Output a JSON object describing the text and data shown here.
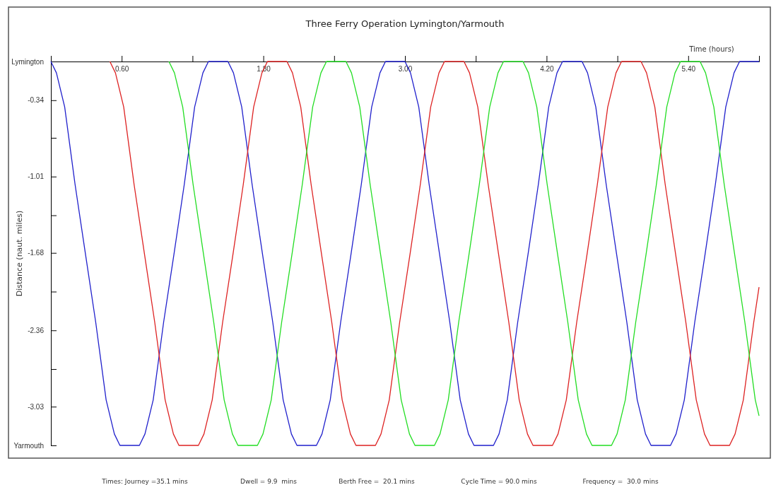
{
  "chart_data": {
    "type": "line",
    "title": "Three Ferry Operation Lymington/Yarmouth",
    "xlabel": "Time (hours)",
    "ylabel": "Distance (naut. miles)",
    "xlim": [
      0,
      6
    ],
    "xticks": [
      {
        "value": 0,
        "label": null
      },
      {
        "value": 0.6,
        "label": "0.60"
      },
      {
        "value": 1.2,
        "label": null
      },
      {
        "value": 1.8,
        "label": "1.80"
      },
      {
        "value": 2.4,
        "label": null
      },
      {
        "value": 3,
        "label": "3.00"
      },
      {
        "value": 3.6,
        "label": null
      },
      {
        "value": 4.2,
        "label": "4.20"
      },
      {
        "value": 4.8,
        "label": null
      },
      {
        "value": 5.4,
        "label": "5.40"
      },
      {
        "value": 6,
        "label": null
      }
    ],
    "ylim": [
      -3.37,
      0
    ],
    "yticks": [
      {
        "value": 0,
        "label": "Lymington"
      },
      -0.34,
      {
        "value": -0.67,
        "label": null
      },
      -1.01,
      {
        "value": -1.35,
        "label": null
      },
      -1.68,
      {
        "value": -2.02,
        "label": null
      },
      -2.36,
      {
        "value": -2.7,
        "label": null
      },
      -3.03,
      {
        "value": -3.37,
        "label": "Yarmouth"
      }
    ],
    "series": [
      {
        "color": "#2020cc",
        "x": [
          0,
          0.047,
          0.117,
          0.205,
          0.293,
          0.38,
          0.468,
          0.538,
          0.585,
          0.75,
          0.797,
          0.867,
          0.955,
          1.043,
          1.13,
          1.218,
          1.288,
          1.335,
          1.5,
          1.547,
          1.617,
          1.705,
          1.793,
          1.88,
          1.968,
          2.038,
          2.085,
          2.25,
          2.297,
          2.367,
          2.455,
          2.543,
          2.63,
          2.718,
          2.788,
          2.835,
          3,
          3.047,
          3.117,
          3.205,
          3.293,
          3.38,
          3.468,
          3.538,
          3.585,
          3.75,
          3.797,
          3.867,
          3.955,
          4.043,
          4.13,
          4.218,
          4.288,
          4.335,
          4.5,
          4.547,
          4.617,
          4.705,
          4.793,
          4.88,
          4.968,
          5.038,
          5.085,
          5.25,
          5.297,
          5.367,
          5.455,
          5.543,
          5.63,
          5.718,
          5.788,
          5.835,
          6
        ],
        "values": [
          0,
          -0.1,
          -0.4,
          -1.08,
          -1.69,
          -2.29,
          -2.97,
          -3.27,
          -3.37,
          -3.37,
          -3.27,
          -2.97,
          -2.29,
          -1.69,
          -1.08,
          -0.4,
          -0.1,
          0,
          0,
          -0.1,
          -0.4,
          -1.08,
          -1.69,
          -2.29,
          -2.97,
          -3.27,
          -3.37,
          -3.37,
          -3.27,
          -2.97,
          -2.29,
          -1.69,
          -1.08,
          -0.4,
          -0.1,
          0,
          0,
          -0.1,
          -0.4,
          -1.08,
          -1.69,
          -2.29,
          -2.97,
          -3.27,
          -3.37,
          -3.37,
          -3.27,
          -2.97,
          -2.29,
          -1.69,
          -1.08,
          -0.4,
          -0.1,
          0,
          0,
          -0.1,
          -0.4,
          -1.08,
          -1.69,
          -2.29,
          -2.97,
          -3.27,
          -3.37,
          -3.37,
          -3.27,
          -2.97,
          -2.29,
          -1.69,
          -1.08,
          -0.4,
          -0.1,
          0,
          0
        ]
      },
      {
        "color": "#dd2222",
        "x": [
          0.5,
          0.547,
          0.617,
          0.705,
          0.793,
          0.88,
          0.968,
          1.038,
          1.085,
          1.25,
          1.297,
          1.367,
          1.455,
          1.543,
          1.63,
          1.718,
          1.788,
          1.835,
          2,
          2.047,
          2.117,
          2.205,
          2.293,
          2.38,
          2.468,
          2.538,
          2.585,
          2.75,
          2.797,
          2.867,
          2.955,
          3.043,
          3.13,
          3.218,
          3.288,
          3.335,
          3.5,
          3.547,
          3.617,
          3.705,
          3.793,
          3.88,
          3.968,
          4.038,
          4.085,
          4.25,
          4.297,
          4.367,
          4.455,
          4.543,
          4.63,
          4.718,
          4.788,
          4.835,
          5,
          5.047,
          5.117,
          5.205,
          5.293,
          5.38,
          5.468,
          5.538,
          5.585,
          5.75,
          5.797,
          5.867,
          5.955,
          6
        ],
        "values": [
          0,
          -0.1,
          -0.4,
          -1.08,
          -1.69,
          -2.29,
          -2.97,
          -3.27,
          -3.37,
          -3.37,
          -3.27,
          -2.97,
          -2.29,
          -1.69,
          -1.08,
          -0.4,
          -0.1,
          0,
          0,
          -0.1,
          -0.4,
          -1.08,
          -1.69,
          -2.29,
          -2.97,
          -3.27,
          -3.37,
          -3.37,
          -3.27,
          -2.97,
          -2.29,
          -1.69,
          -1.08,
          -0.4,
          -0.1,
          0,
          0,
          -0.1,
          -0.4,
          -1.08,
          -1.69,
          -2.29,
          -2.97,
          -3.27,
          -3.37,
          -3.37,
          -3.27,
          -2.97,
          -2.29,
          -1.69,
          -1.08,
          -0.4,
          -0.1,
          0,
          0,
          -0.1,
          -0.4,
          -1.08,
          -1.69,
          -2.29,
          -2.97,
          -3.27,
          -3.37,
          -3.37,
          -3.27,
          -2.97,
          -2.29,
          -1.98
        ]
      },
      {
        "color": "#22dd22",
        "x": [
          1,
          1.047,
          1.117,
          1.205,
          1.293,
          1.38,
          1.468,
          1.538,
          1.585,
          1.75,
          1.797,
          1.867,
          1.955,
          2.043,
          2.13,
          2.218,
          2.288,
          2.335,
          2.5,
          2.547,
          2.617,
          2.705,
          2.793,
          2.88,
          2.968,
          3.038,
          3.085,
          3.25,
          3.297,
          3.367,
          3.455,
          3.543,
          3.63,
          3.718,
          3.788,
          3.835,
          4,
          4.047,
          4.117,
          4.205,
          4.293,
          4.38,
          4.468,
          4.538,
          4.585,
          4.75,
          4.797,
          4.867,
          4.955,
          5.043,
          5.13,
          5.218,
          5.288,
          5.335,
          5.5,
          5.547,
          5.617,
          5.705,
          5.793,
          5.88,
          5.968,
          6
        ],
        "values": [
          0,
          -0.1,
          -0.4,
          -1.08,
          -1.69,
          -2.29,
          -2.97,
          -3.27,
          -3.37,
          -3.37,
          -3.27,
          -2.97,
          -2.29,
          -1.69,
          -1.08,
          -0.4,
          -0.1,
          0,
          0,
          -0.1,
          -0.4,
          -1.08,
          -1.69,
          -2.29,
          -2.97,
          -3.27,
          -3.37,
          -3.37,
          -3.27,
          -2.97,
          -2.29,
          -1.69,
          -1.08,
          -0.4,
          -0.1,
          0,
          0,
          -0.1,
          -0.4,
          -1.08,
          -1.69,
          -2.29,
          -2.97,
          -3.27,
          -3.37,
          -3.37,
          -3.27,
          -2.97,
          -2.29,
          -1.69,
          -1.08,
          -0.4,
          -0.1,
          0,
          0,
          -0.1,
          -0.4,
          -1.08,
          -1.69,
          -2.29,
          -2.97,
          -3.11
        ]
      }
    ],
    "annotations": [
      "Times: Journey =35.1 mins",
      "Dwell = 9.9  mins",
      "Berth Free =  20.1 mins",
      "Cycle Time = 90.0 mins",
      "Frequency =  30.0 mins"
    ]
  }
}
